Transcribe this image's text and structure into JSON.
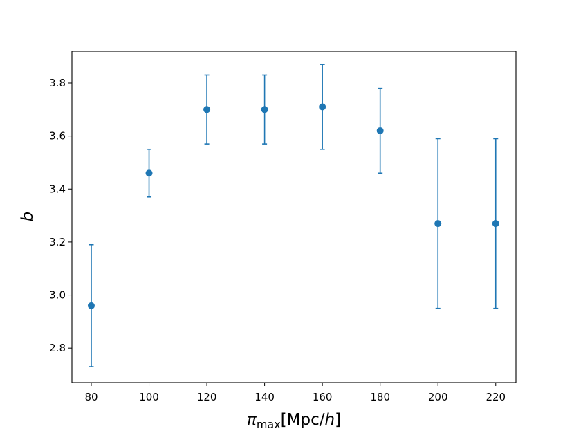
{
  "chart_data": {
    "type": "scatter",
    "series_color": "#1f77b4",
    "x": [
      80,
      100,
      120,
      140,
      160,
      180,
      200,
      220
    ],
    "y": [
      2.96,
      3.46,
      3.7,
      3.7,
      3.71,
      3.62,
      3.27,
      3.27
    ],
    "y_lower": [
      2.73,
      3.37,
      3.57,
      3.57,
      3.55,
      3.46,
      2.95,
      2.95
    ],
    "y_upper": [
      3.19,
      3.55,
      3.83,
      3.83,
      3.87,
      3.78,
      3.59,
      3.59
    ],
    "xlim": [
      73.3,
      227.0
    ],
    "ylim": [
      2.67,
      3.92
    ],
    "xticks": [
      80,
      100,
      120,
      140,
      160,
      180,
      200,
      220
    ],
    "xtick_labels": [
      "80",
      "100",
      "120",
      "140",
      "160",
      "180",
      "200",
      "220"
    ],
    "yticks": [
      2.8,
      3.0,
      3.2,
      3.4,
      3.6,
      3.8
    ],
    "ytick_labels": [
      "2.8",
      "3.0",
      "3.2",
      "3.4",
      "3.6",
      "3.8"
    ],
    "xlabel": {
      "symbol": "π",
      "subscript": "max",
      "unit_open": "[Mpc/",
      "unit_var": "h",
      "unit_close": "]"
    },
    "ylabel": "b",
    "grid": false,
    "legend": "none"
  }
}
